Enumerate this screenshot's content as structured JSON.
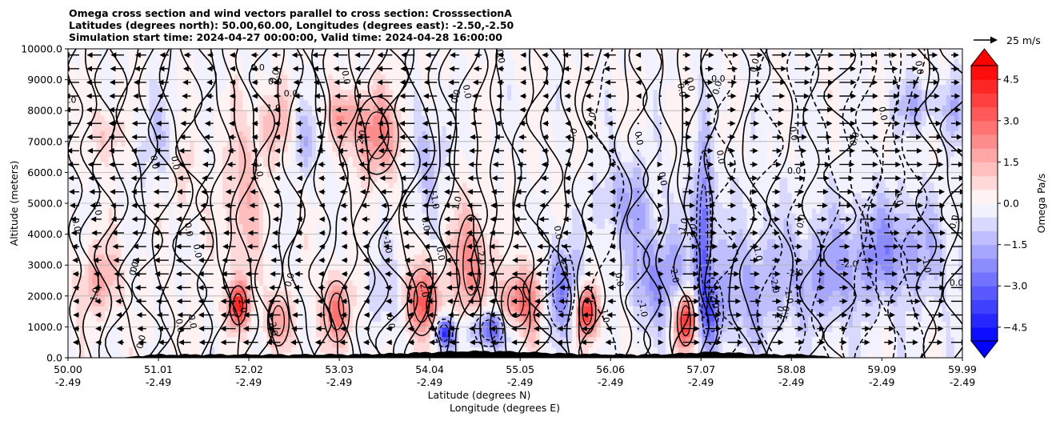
{
  "chart_data": {
    "type": "heatmap",
    "title_lines": [
      "Omega cross section and wind vectors parallel to cross section: CrosssectionA",
      "Latitudes (degrees north): 50.00,60.00, Longitudes (degrees east): -2.50,-2.50",
      "Simulation start time: 2024-04-27 00:00:00, Valid time: 2024-04-28 16:00:00"
    ],
    "ylabel": "Altitude (meters)",
    "xlabel_line1": "Latitude (degrees N)",
    "xlabel_line2": "Longitude (degrees E)",
    "ylim": [
      0,
      10000
    ],
    "y_ticks": [
      0,
      1000,
      2000,
      3000,
      4000,
      5000,
      6000,
      7000,
      8000,
      9000,
      10000
    ],
    "y_tick_labels": [
      "0.0",
      "1000.0",
      "2000.0",
      "3000.0",
      "4000.0",
      "5000.0",
      "6000.0",
      "7000.0",
      "8000.0",
      "9000.0",
      "10000.0"
    ],
    "xlim": [
      50.0,
      59.99
    ],
    "x_ticks": [
      50.0,
      51.01,
      52.02,
      53.03,
      54.04,
      55.05,
      56.06,
      57.07,
      58.08,
      59.09,
      59.99
    ],
    "x_tick_labels_lat": [
      "50.00",
      "51.01",
      "52.02",
      "53.03",
      "54.04",
      "55.05",
      "56.06",
      "57.07",
      "58.08",
      "59.09",
      "59.99"
    ],
    "x_tick_labels_lon": [
      "-2.49",
      "-2.49",
      "-2.49",
      "-2.49",
      "-2.49",
      "-2.49",
      "-2.49",
      "-2.49",
      "-2.49",
      "-2.49",
      "-2.49"
    ],
    "colorbar": {
      "label": "Omega Pa/s",
      "range": [
        -5.0,
        5.0
      ],
      "levels": 20,
      "ticks": [
        4.5,
        3.0,
        1.5,
        0.0,
        -1.5,
        -3.0,
        -4.5
      ],
      "tick_labels": [
        "4.5",
        "3.0",
        "1.5",
        "0.0",
        "−1.5",
        "−3.0",
        "−4.5"
      ],
      "extend": "both",
      "cmap": "bwr"
    },
    "quiver_key_label": "25 m/s",
    "quiver_key_speed": 25,
    "contour_labels_visible": [
      "0.0",
      "1.0",
      "-1.0",
      "2.0",
      "-2.0"
    ],
    "omega_features": [
      {
        "lat": 50.45,
        "alt": 7200,
        "value": 1.2,
        "lat_w": 0.18,
        "alt_w": 900
      },
      {
        "lat": 50.35,
        "alt": 2500,
        "value": 1.5,
        "lat_w": 0.25,
        "alt_w": 1200
      },
      {
        "lat": 51.0,
        "alt": 7000,
        "value": -0.8,
        "lat_w": 0.3,
        "alt_w": 1500
      },
      {
        "lat": 51.3,
        "alt": 6000,
        "value": 1.0,
        "lat_w": 0.15,
        "alt_w": 1500
      },
      {
        "lat": 51.9,
        "alt": 1700,
        "value": 4.2,
        "lat_w": 0.12,
        "alt_w": 700
      },
      {
        "lat": 51.95,
        "alt": 5000,
        "value": 1.5,
        "lat_w": 0.2,
        "alt_w": 2500
      },
      {
        "lat": 52.3,
        "alt": 7500,
        "value": 1.3,
        "lat_w": 0.2,
        "alt_w": 1200
      },
      {
        "lat": 52.35,
        "alt": 1200,
        "value": 2.0,
        "lat_w": 0.15,
        "alt_w": 900
      },
      {
        "lat": 52.65,
        "alt": 7000,
        "value": -1.2,
        "lat_w": 0.15,
        "alt_w": 1200
      },
      {
        "lat": 53.0,
        "alt": 1500,
        "value": 2.5,
        "lat_w": 0.18,
        "alt_w": 1100
      },
      {
        "lat": 53.1,
        "alt": 7800,
        "value": 1.6,
        "lat_w": 0.2,
        "alt_w": 800
      },
      {
        "lat": 53.45,
        "alt": 7200,
        "value": 2.2,
        "lat_w": 0.3,
        "alt_w": 1400
      },
      {
        "lat": 53.6,
        "alt": 2000,
        "value": -1.0,
        "lat_w": 0.25,
        "alt_w": 1500
      },
      {
        "lat": 53.95,
        "alt": 1800,
        "value": 3.5,
        "lat_w": 0.2,
        "alt_w": 1200
      },
      {
        "lat": 54.0,
        "alt": 6500,
        "value": -1.3,
        "lat_w": 0.2,
        "alt_w": 1800
      },
      {
        "lat": 54.2,
        "alt": 800,
        "value": -4.5,
        "lat_w": 0.12,
        "alt_w": 500
      },
      {
        "lat": 54.5,
        "alt": 3000,
        "value": 2.4,
        "lat_w": 0.2,
        "alt_w": 1800
      },
      {
        "lat": 54.7,
        "alt": 900,
        "value": -3.5,
        "lat_w": 0.2,
        "alt_w": 600
      },
      {
        "lat": 55.0,
        "alt": 1800,
        "value": 2.2,
        "lat_w": 0.2,
        "alt_w": 900
      },
      {
        "lat": 55.2,
        "alt": 2000,
        "value": 1.8,
        "lat_w": 0.15,
        "alt_w": 1400
      },
      {
        "lat": 55.5,
        "alt": 2300,
        "value": -2.5,
        "lat_w": 0.2,
        "alt_w": 1500
      },
      {
        "lat": 55.8,
        "alt": 1500,
        "value": 4.3,
        "lat_w": 0.12,
        "alt_w": 800
      },
      {
        "lat": 56.2,
        "alt": 5000,
        "value": -1.5,
        "lat_w": 0.3,
        "alt_w": 1500
      },
      {
        "lat": 56.6,
        "alt": 2500,
        "value": -1.8,
        "lat_w": 0.3,
        "alt_w": 1400
      },
      {
        "lat": 56.9,
        "alt": 1200,
        "value": 4.6,
        "lat_w": 0.12,
        "alt_w": 900
      },
      {
        "lat": 57.1,
        "alt": 4000,
        "value": -2.8,
        "lat_w": 0.1,
        "alt_w": 3000
      },
      {
        "lat": 57.2,
        "alt": 1500,
        "value": -2.0,
        "lat_w": 0.15,
        "alt_w": 1200
      },
      {
        "lat": 57.6,
        "alt": 2000,
        "value": -1.2,
        "lat_w": 0.3,
        "alt_w": 1800
      },
      {
        "lat": 58.4,
        "alt": 2500,
        "value": -1.3,
        "lat_w": 0.5,
        "alt_w": 1500
      },
      {
        "lat": 59.2,
        "alt": 3500,
        "value": -1.6,
        "lat_w": 0.5,
        "alt_w": 1500
      },
      {
        "lat": 59.5,
        "alt": 8200,
        "value": -1.4,
        "lat_w": 0.3,
        "alt_w": 800
      },
      {
        "lat": 59.9,
        "alt": 8000,
        "value": -1.2,
        "lat_w": 0.1,
        "alt_w": 1200
      }
    ]
  }
}
